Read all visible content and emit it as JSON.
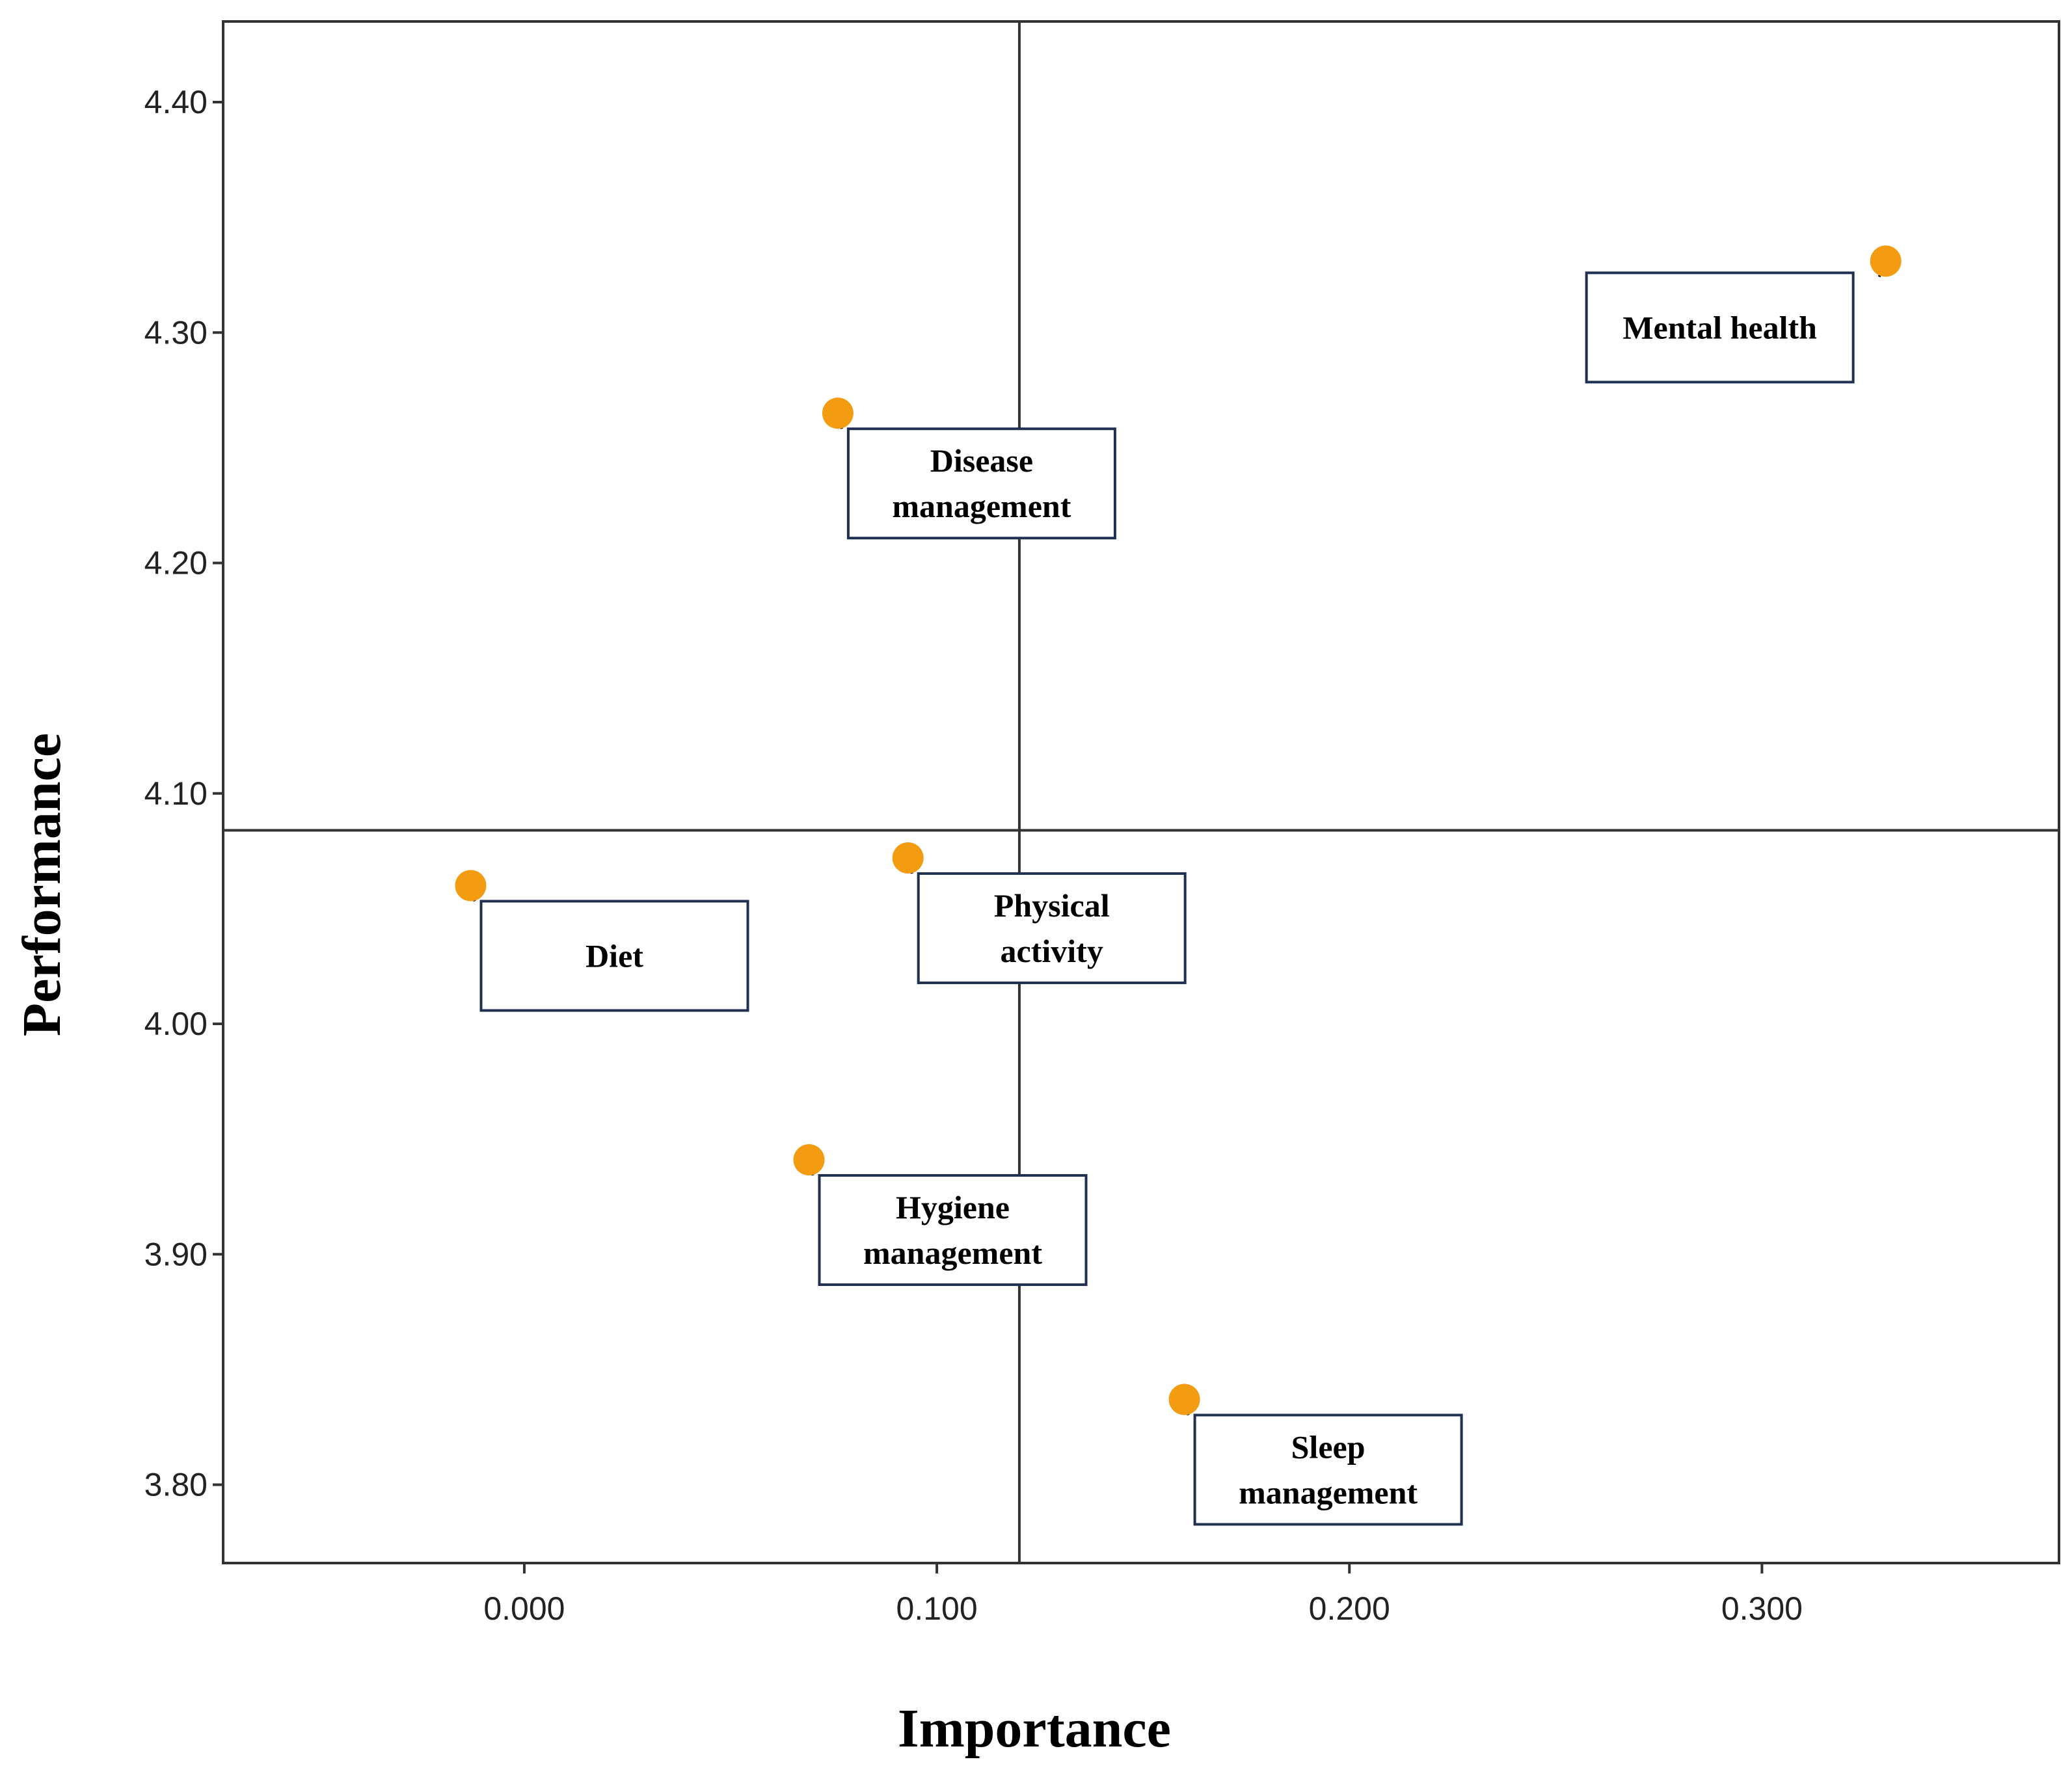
{
  "chart_data": {
    "type": "scatter",
    "title": "",
    "xlabel": "Importance",
    "ylabel": "Performance",
    "xlim": [
      -0.073,
      0.372
    ],
    "ylim": [
      3.766,
      4.435
    ],
    "x_ticks": [
      0.0,
      0.1,
      0.2,
      0.3
    ],
    "x_tick_labels": [
      "0.000",
      "0.100",
      "0.200",
      "0.300"
    ],
    "y_ticks": [
      3.8,
      3.9,
      4.0,
      4.1,
      4.2,
      4.3,
      4.4
    ],
    "y_tick_labels": [
      "3.80",
      "3.90",
      "4.00",
      "4.10",
      "4.20",
      "4.30",
      "4.40"
    ],
    "reference_lines": {
      "x": 0.12,
      "y": 4.084
    },
    "grid": false,
    "marker_color": "#f39c12",
    "points": [
      {
        "label": [
          "Mental health"
        ],
        "x": 0.33,
        "y": 4.331
      },
      {
        "label": [
          "Disease",
          "management"
        ],
        "x": 0.076,
        "y": 4.265
      },
      {
        "label": [
          "Physical",
          "activity"
        ],
        "x": 0.093,
        "y": 4.072
      },
      {
        "label": [
          "Diet"
        ],
        "x": -0.013,
        "y": 4.06
      },
      {
        "label": [
          "Hygiene",
          "management"
        ],
        "x": 0.069,
        "y": 3.941
      },
      {
        "label": [
          "Sleep",
          "management"
        ],
        "x": 0.16,
        "y": 3.837
      }
    ]
  }
}
